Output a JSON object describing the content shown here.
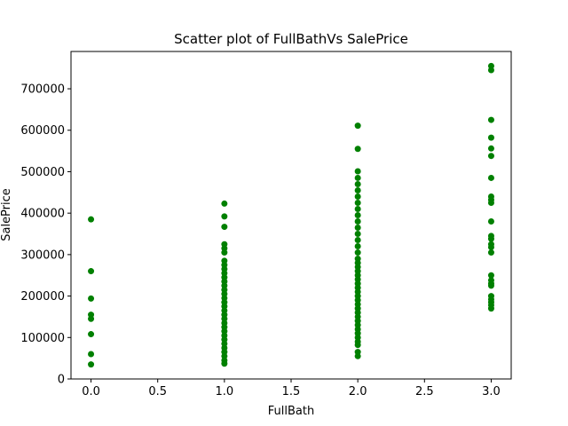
{
  "chart_data": {
    "type": "scatter",
    "title": "Scatter plot of FullBathVs SalePrice",
    "xlabel": "FullBath",
    "ylabel": "SalePrice",
    "xlim": [
      -0.15,
      3.15
    ],
    "ylim": [
      0,
      790000
    ],
    "xticks": [
      0.0,
      0.5,
      1.0,
      1.5,
      2.0,
      2.5,
      3.0
    ],
    "xtick_labels": [
      "0.0",
      "0.5",
      "1.0",
      "1.5",
      "2.0",
      "2.5",
      "3.0"
    ],
    "yticks": [
      0,
      100000,
      200000,
      300000,
      400000,
      500000,
      600000,
      700000
    ],
    "ytick_labels": [
      "0",
      "100000",
      "200000",
      "300000",
      "400000",
      "500000",
      "600000",
      "700000"
    ],
    "grid": false,
    "marker_color": "#008000",
    "points": [
      {
        "x": 0,
        "y": 385000
      },
      {
        "x": 0,
        "y": 260000
      },
      {
        "x": 0,
        "y": 194000
      },
      {
        "x": 0,
        "y": 155000
      },
      {
        "x": 0,
        "y": 145000
      },
      {
        "x": 0,
        "y": 108000
      },
      {
        "x": 0,
        "y": 60000
      },
      {
        "x": 0,
        "y": 35000
      },
      {
        "x": 1,
        "y": 423000
      },
      {
        "x": 1,
        "y": 392000
      },
      {
        "x": 1,
        "y": 367000
      },
      {
        "x": 1,
        "y": 325000
      },
      {
        "x": 1,
        "y": 315000
      },
      {
        "x": 1,
        "y": 305000
      },
      {
        "x": 1,
        "y": 285000
      },
      {
        "x": 1,
        "y": 275000
      },
      {
        "x": 1,
        "y": 265000
      },
      {
        "x": 1,
        "y": 255000
      },
      {
        "x": 1,
        "y": 245000
      },
      {
        "x": 1,
        "y": 235000
      },
      {
        "x": 1,
        "y": 225000
      },
      {
        "x": 1,
        "y": 215000
      },
      {
        "x": 1,
        "y": 205000
      },
      {
        "x": 1,
        "y": 195000
      },
      {
        "x": 1,
        "y": 185000
      },
      {
        "x": 1,
        "y": 175000
      },
      {
        "x": 1,
        "y": 165000
      },
      {
        "x": 1,
        "y": 155000
      },
      {
        "x": 1,
        "y": 145000
      },
      {
        "x": 1,
        "y": 135000
      },
      {
        "x": 1,
        "y": 125000
      },
      {
        "x": 1,
        "y": 115000
      },
      {
        "x": 1,
        "y": 105000
      },
      {
        "x": 1,
        "y": 95000
      },
      {
        "x": 1,
        "y": 85000
      },
      {
        "x": 1,
        "y": 75000
      },
      {
        "x": 1,
        "y": 65000
      },
      {
        "x": 1,
        "y": 55000
      },
      {
        "x": 1,
        "y": 45000
      },
      {
        "x": 1,
        "y": 37000
      },
      {
        "x": 2,
        "y": 611000
      },
      {
        "x": 2,
        "y": 555000
      },
      {
        "x": 2,
        "y": 501000
      },
      {
        "x": 2,
        "y": 485000
      },
      {
        "x": 2,
        "y": 470000
      },
      {
        "x": 2,
        "y": 455000
      },
      {
        "x": 2,
        "y": 440000
      },
      {
        "x": 2,
        "y": 425000
      },
      {
        "x": 2,
        "y": 410000
      },
      {
        "x": 2,
        "y": 395000
      },
      {
        "x": 2,
        "y": 380000
      },
      {
        "x": 2,
        "y": 365000
      },
      {
        "x": 2,
        "y": 350000
      },
      {
        "x": 2,
        "y": 335000
      },
      {
        "x": 2,
        "y": 320000
      },
      {
        "x": 2,
        "y": 305000
      },
      {
        "x": 2,
        "y": 290000
      },
      {
        "x": 2,
        "y": 280000
      },
      {
        "x": 2,
        "y": 270000
      },
      {
        "x": 2,
        "y": 260000
      },
      {
        "x": 2,
        "y": 250000
      },
      {
        "x": 2,
        "y": 240000
      },
      {
        "x": 2,
        "y": 230000
      },
      {
        "x": 2,
        "y": 220000
      },
      {
        "x": 2,
        "y": 210000
      },
      {
        "x": 2,
        "y": 200000
      },
      {
        "x": 2,
        "y": 190000
      },
      {
        "x": 2,
        "y": 180000
      },
      {
        "x": 2,
        "y": 170000
      },
      {
        "x": 2,
        "y": 160000
      },
      {
        "x": 2,
        "y": 150000
      },
      {
        "x": 2,
        "y": 140000
      },
      {
        "x": 2,
        "y": 130000
      },
      {
        "x": 2,
        "y": 120000
      },
      {
        "x": 2,
        "y": 110000
      },
      {
        "x": 2,
        "y": 100000
      },
      {
        "x": 2,
        "y": 90000
      },
      {
        "x": 2,
        "y": 82000
      },
      {
        "x": 2,
        "y": 65000
      },
      {
        "x": 2,
        "y": 55000
      },
      {
        "x": 3,
        "y": 755000
      },
      {
        "x": 3,
        "y": 745000
      },
      {
        "x": 3,
        "y": 625000
      },
      {
        "x": 3,
        "y": 582000
      },
      {
        "x": 3,
        "y": 556000
      },
      {
        "x": 3,
        "y": 538000
      },
      {
        "x": 3,
        "y": 485000
      },
      {
        "x": 3,
        "y": 440000
      },
      {
        "x": 3,
        "y": 432000
      },
      {
        "x": 3,
        "y": 425000
      },
      {
        "x": 3,
        "y": 380000
      },
      {
        "x": 3,
        "y": 345000
      },
      {
        "x": 3,
        "y": 338000
      },
      {
        "x": 3,
        "y": 325000
      },
      {
        "x": 3,
        "y": 318000
      },
      {
        "x": 3,
        "y": 305000
      },
      {
        "x": 3,
        "y": 250000
      },
      {
        "x": 3,
        "y": 238000
      },
      {
        "x": 3,
        "y": 230000
      },
      {
        "x": 3,
        "y": 225000
      },
      {
        "x": 3,
        "y": 200000
      },
      {
        "x": 3,
        "y": 192000
      },
      {
        "x": 3,
        "y": 185000
      },
      {
        "x": 3,
        "y": 178000
      },
      {
        "x": 3,
        "y": 170000
      }
    ]
  }
}
